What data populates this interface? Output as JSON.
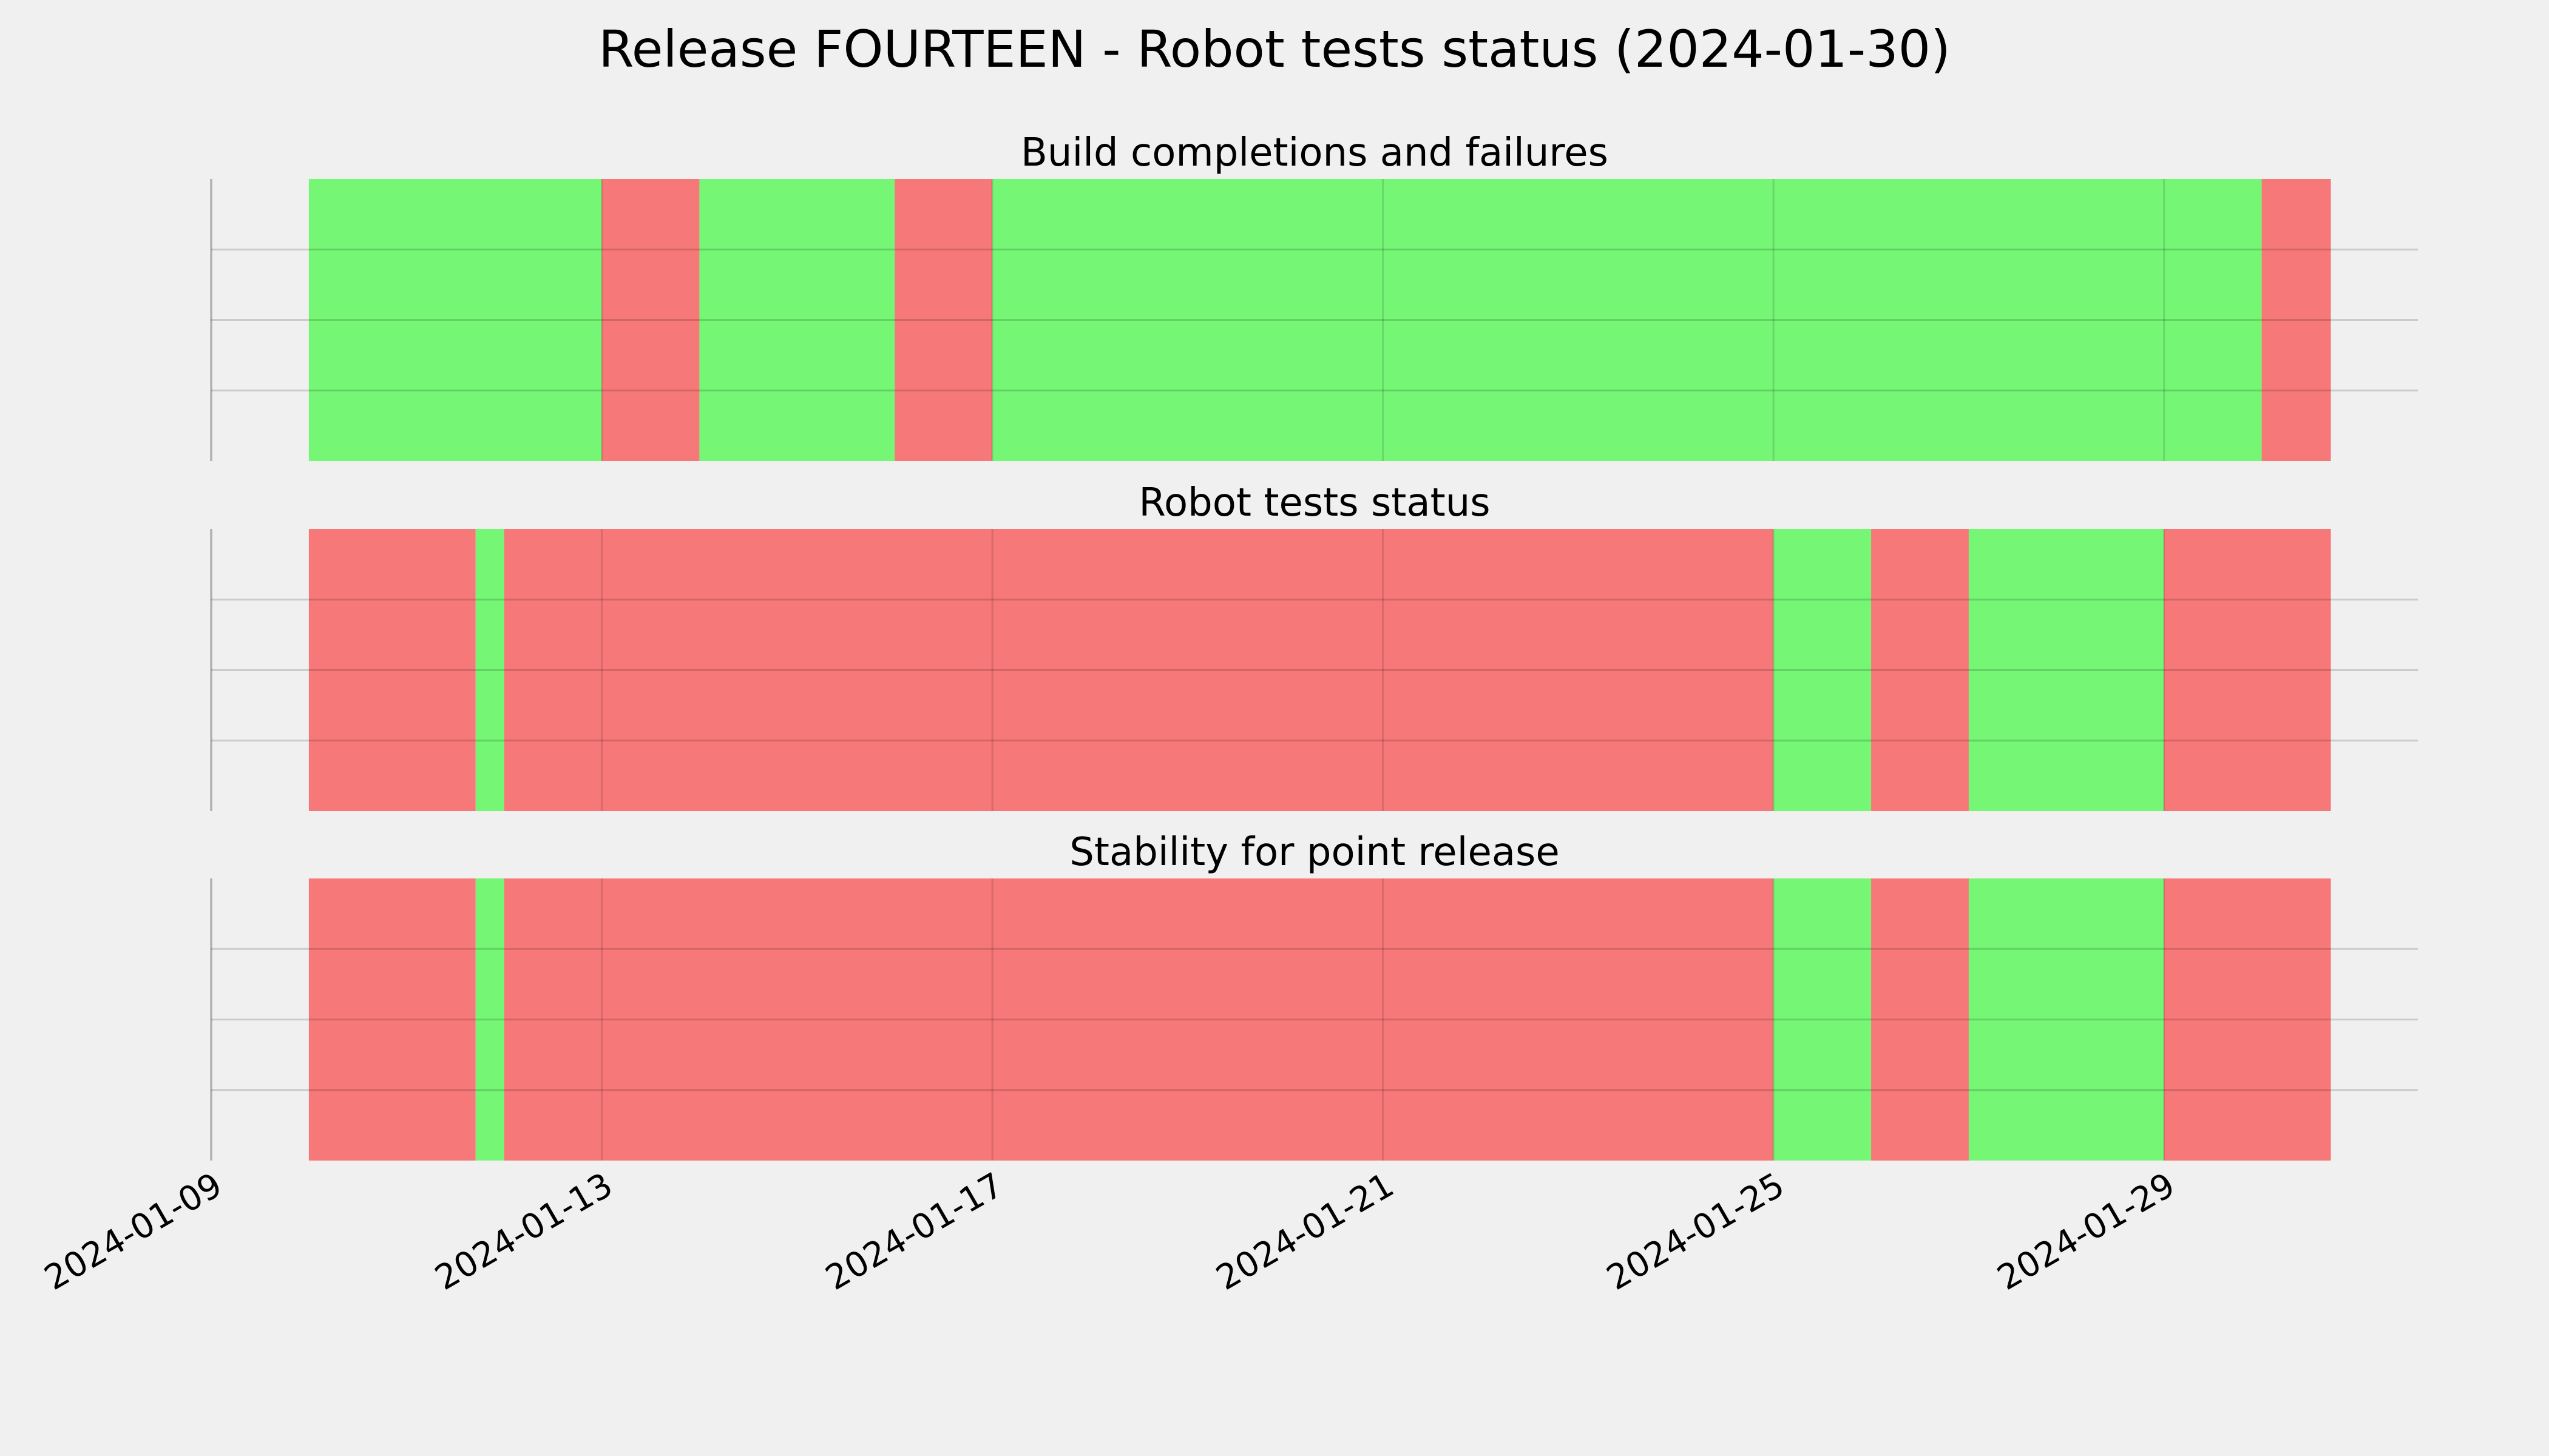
{
  "chart_data": {
    "type": "timeline",
    "title": "Release FOURTEEN - Robot tests status (2024-01-30)",
    "xlim": [
      "2024-01-09",
      "2024-01-31.6"
    ],
    "x_ticks": [
      "2024-01-09",
      "2024-01-13",
      "2024-01-17",
      "2024-01-21",
      "2024-01-25",
      "2024-01-29"
    ],
    "grid": true,
    "colors": {
      "pass": "#75f675",
      "fail": "#f77878",
      "background": "#f0f0f0"
    },
    "panels": [
      {
        "title": "Build completions and failures",
        "segments": [
          {
            "start": "2024-01-10 00:00",
            "end": "2024-01-13 00:00",
            "status": "pass"
          },
          {
            "start": "2024-01-13 00:00",
            "end": "2024-01-14 00:00",
            "status": "fail"
          },
          {
            "start": "2024-01-14 00:00",
            "end": "2024-01-16 00:00",
            "status": "pass"
          },
          {
            "start": "2024-01-16 00:00",
            "end": "2024-01-17 00:00",
            "status": "fail"
          },
          {
            "start": "2024-01-17 00:00",
            "end": "2024-01-30 00:00",
            "status": "pass"
          },
          {
            "start": "2024-01-30 00:00",
            "end": "2024-01-30 17:00",
            "status": "fail"
          }
        ]
      },
      {
        "title": "Robot tests status",
        "segments": [
          {
            "start": "2024-01-10 00:00",
            "end": "2024-01-11 17:00",
            "status": "fail"
          },
          {
            "start": "2024-01-11 17:00",
            "end": "2024-01-12 00:00",
            "status": "pass"
          },
          {
            "start": "2024-01-12 00:00",
            "end": "2024-01-25 00:00",
            "status": "fail"
          },
          {
            "start": "2024-01-25 00:00",
            "end": "2024-01-26 00:00",
            "status": "pass"
          },
          {
            "start": "2024-01-26 00:00",
            "end": "2024-01-27 00:00",
            "status": "fail"
          },
          {
            "start": "2024-01-27 00:00",
            "end": "2024-01-29 00:00",
            "status": "pass"
          },
          {
            "start": "2024-01-29 00:00",
            "end": "2024-01-30 17:00",
            "status": "fail"
          }
        ]
      },
      {
        "title": "Stability for point release",
        "segments": [
          {
            "start": "2024-01-10 00:00",
            "end": "2024-01-11 17:00",
            "status": "fail"
          },
          {
            "start": "2024-01-11 17:00",
            "end": "2024-01-12 00:00",
            "status": "pass"
          },
          {
            "start": "2024-01-12 00:00",
            "end": "2024-01-25 00:00",
            "status": "fail"
          },
          {
            "start": "2024-01-25 00:00",
            "end": "2024-01-26 00:00",
            "status": "pass"
          },
          {
            "start": "2024-01-26 00:00",
            "end": "2024-01-27 00:00",
            "status": "fail"
          },
          {
            "start": "2024-01-27 00:00",
            "end": "2024-01-29 00:00",
            "status": "pass"
          },
          {
            "start": "2024-01-29 00:00",
            "end": "2024-01-30 17:00",
            "status": "fail"
          }
        ]
      }
    ]
  }
}
